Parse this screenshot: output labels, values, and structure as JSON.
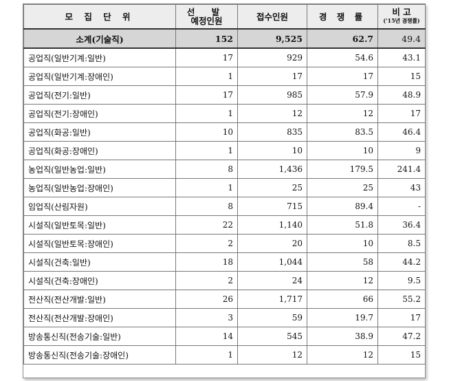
{
  "headers": {
    "unit": "모 집 단 위",
    "planned_line1": "선 발",
    "planned_line2": "예정인원",
    "applicants": "접수인원",
    "competition": "경 쟁 률",
    "note_line1": "비 고",
    "note_line2": "('15년 경쟁률)"
  },
  "subtotal": {
    "name": "소계(기술직)",
    "planned": "152",
    "applicants": "9,525",
    "ratio": "62.7",
    "prev": "49.4"
  },
  "rows": [
    {
      "name": "공업직(일반기계:일반)",
      "planned": "17",
      "applicants": "929",
      "ratio": "54.6",
      "prev": "43.1"
    },
    {
      "name": "공업직(일반기계:장애인)",
      "planned": "1",
      "applicants": "17",
      "ratio": "17",
      "prev": "15"
    },
    {
      "name": "공업직(전기:일반)",
      "planned": "17",
      "applicants": "985",
      "ratio": "57.9",
      "prev": "48.9"
    },
    {
      "name": "공업직(전기:장애인)",
      "planned": "1",
      "applicants": "12",
      "ratio": "12",
      "prev": "17"
    },
    {
      "name": "공업직(화공:일반)",
      "planned": "10",
      "applicants": "835",
      "ratio": "83.5",
      "prev": "46.4"
    },
    {
      "name": "공업직(화공:장애인)",
      "planned": "1",
      "applicants": "10",
      "ratio": "10",
      "prev": "9"
    },
    {
      "name": "농업직(일반농업:일반)",
      "planned": "8",
      "applicants": "1,436",
      "ratio": "179.5",
      "prev": "241.4"
    },
    {
      "name": "농업직(일반농업:장애인)",
      "planned": "1",
      "applicants": "25",
      "ratio": "25",
      "prev": "43"
    },
    {
      "name": "임업직(산림자원)",
      "planned": "8",
      "applicants": "715",
      "ratio": "89.4",
      "prev": "-"
    },
    {
      "name": "시설직(일반토목:일반)",
      "planned": "22",
      "applicants": "1,140",
      "ratio": "51.8",
      "prev": "36.4"
    },
    {
      "name": "시설직(일반토목:장애인)",
      "planned": "2",
      "applicants": "20",
      "ratio": "10",
      "prev": "8.5"
    },
    {
      "name": "시설직(건축:일반)",
      "planned": "18",
      "applicants": "1,044",
      "ratio": "58",
      "prev": "44.2"
    },
    {
      "name": "시설직(건축:장애인)",
      "planned": "2",
      "applicants": "24",
      "ratio": "12",
      "prev": "9.5"
    },
    {
      "name": "전산직(전산개발:일반)",
      "planned": "26",
      "applicants": "1,717",
      "ratio": "66",
      "prev": "55.2"
    },
    {
      "name": "전산직(전산개발:장애인)",
      "planned": "3",
      "applicants": "59",
      "ratio": "19.7",
      "prev": "17"
    },
    {
      "name": "방송통신직(전송기술:일반)",
      "planned": "14",
      "applicants": "545",
      "ratio": "38.9",
      "prev": "47.2"
    },
    {
      "name": "방송통신직(전송기술:장애인)",
      "planned": "1",
      "applicants": "12",
      "ratio": "12",
      "prev": "15"
    }
  ]
}
